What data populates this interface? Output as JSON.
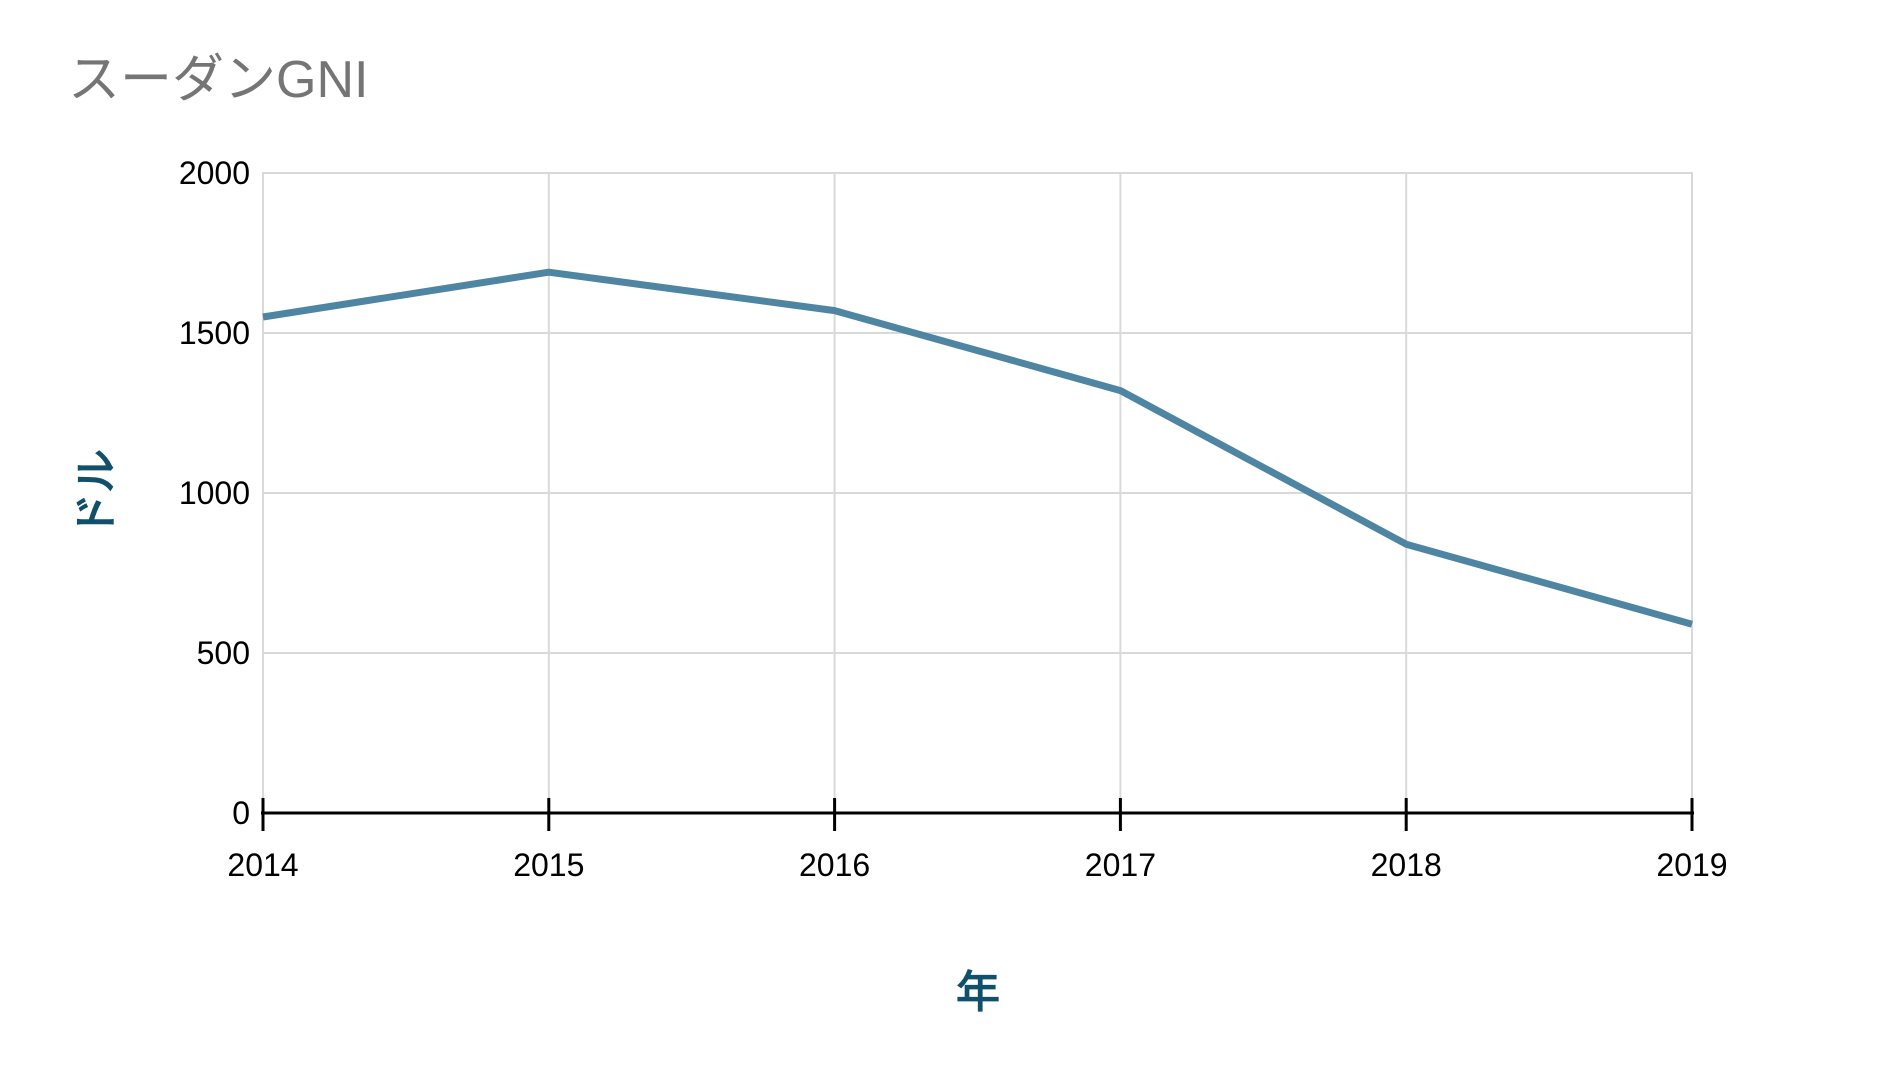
{
  "chart_data": {
    "type": "line",
    "title": "スーダンGNI",
    "xlabel": "年",
    "ylabel": "ドル",
    "x": [
      2014,
      2015,
      2016,
      2017,
      2018,
      2019
    ],
    "x_tick_labels": [
      "2014",
      "2015",
      "2016",
      "2017",
      "2018",
      "2019"
    ],
    "series": [
      {
        "name": "スーダンGNI",
        "values": [
          1550,
          1690,
          1570,
          1320,
          840,
          590
        ]
      }
    ],
    "ylim": [
      0,
      2000
    ],
    "yticks": [
      0,
      500,
      1000,
      1500,
      2000
    ],
    "ytick_labels": [
      "0",
      "500",
      "1000",
      "1500",
      "2000"
    ],
    "grid": true,
    "legend_position": "none",
    "plot_border": true,
    "colors": {
      "line": "#4d85a3",
      "title_text": "#757575",
      "axis_title_text": "#11506b",
      "tick_label_text": "#000000",
      "gridline": "#d9d9d9",
      "axis_line": "#000000",
      "background": "#ffffff"
    }
  }
}
